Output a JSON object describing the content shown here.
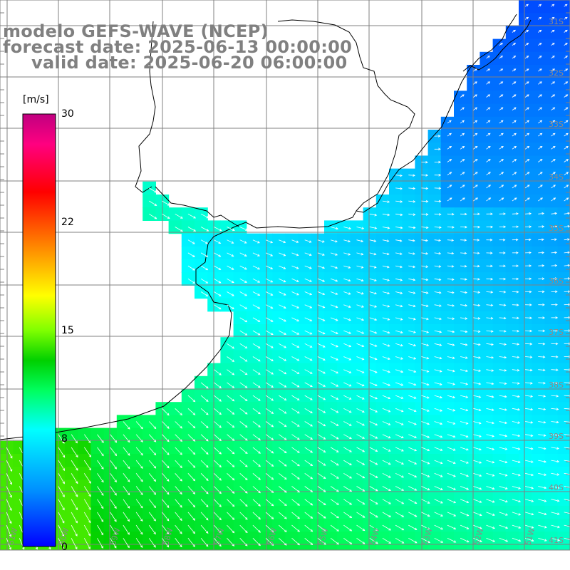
{
  "titles": {
    "line1": "modelo GEFS-WAVE (NCEP)",
    "line2": "forecast date: 2025-06-13 00:00:00",
    "line3": "valid date: 2025-06-20 06:00:00"
  },
  "colorbar": {
    "unit": "[m/s]",
    "min": 0,
    "max": 30,
    "ticks": [
      "30",
      "22",
      "15",
      "8",
      "0"
    ],
    "tick_values": [
      30,
      22,
      15,
      8,
      0
    ],
    "gradient_colors": [
      "#0000ff",
      "#0090ff",
      "#00ffff",
      "#00ff60",
      "#00d000",
      "#80ff00",
      "#ffff00",
      "#ff8000",
      "#ff0000",
      "#ff0080",
      "#c00080"
    ]
  },
  "map": {
    "variable": "wind speed",
    "land_color": "#ffffff",
    "grid_color": "#808080",
    "coast_color": "#000000",
    "arrow_color": "#ffffff",
    "lat_labels": [
      "31S",
      "32S",
      "33S",
      "34S",
      "35S",
      "36S",
      "37S",
      "38S",
      "39S",
      "40S",
      "41S"
    ],
    "lon_labels": [
      "61W",
      "60W",
      "59W",
      "58W",
      "57W",
      "56W",
      "55W",
      "54W",
      "53W",
      "52W",
      "51W"
    ]
  }
}
